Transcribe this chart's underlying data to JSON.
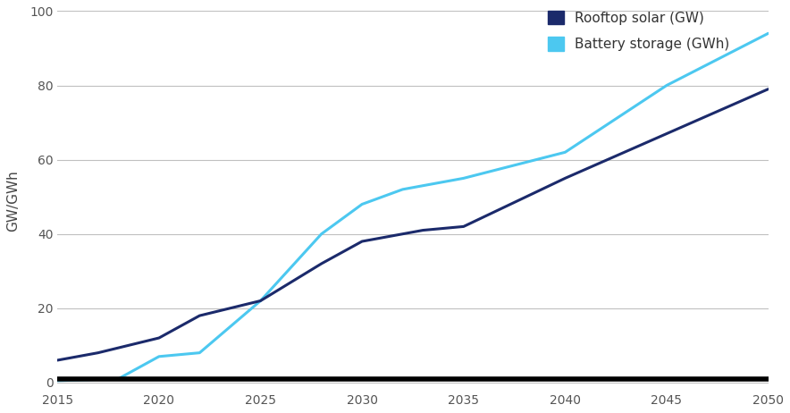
{
  "solar_x": [
    2015,
    2017,
    2020,
    2022,
    2025,
    2028,
    2030,
    2033,
    2035,
    2040,
    2045,
    2050
  ],
  "solar_y": [
    6,
    8,
    12,
    18,
    22,
    32,
    38,
    41,
    42,
    55,
    67,
    79
  ],
  "battery_x": [
    2015,
    2018,
    2020,
    2022,
    2025,
    2028,
    2030,
    2032,
    2035,
    2040,
    2045,
    2050
  ],
  "battery_y": [
    0.5,
    1,
    7,
    8,
    22,
    40,
    48,
    52,
    55,
    62,
    80,
    94
  ],
  "baseline_x": [
    2015,
    2050
  ],
  "baseline_y": [
    1,
    1
  ],
  "solar_color": "#1b2a6b",
  "battery_color": "#4cc8f0",
  "baseline_color": "#000000",
  "ylabel": "GW/GWh",
  "ylim": [
    -2,
    100
  ],
  "xlim": [
    2015,
    2050
  ],
  "yticks": [
    0,
    20,
    40,
    60,
    80,
    100
  ],
  "xticks": [
    2015,
    2020,
    2025,
    2030,
    2035,
    2040,
    2045,
    2050
  ],
  "legend_solar": "Rooftop solar (GW)",
  "legend_battery": "Battery storage (GWh)",
  "grid_color": "#c0c0c0",
  "background_color": "#ffffff",
  "solar_linewidth": 2.2,
  "battery_linewidth": 2.2,
  "baseline_linewidth": 4.0,
  "legend_fontsize": 11,
  "ylabel_fontsize": 11,
  "tick_fontsize": 10
}
